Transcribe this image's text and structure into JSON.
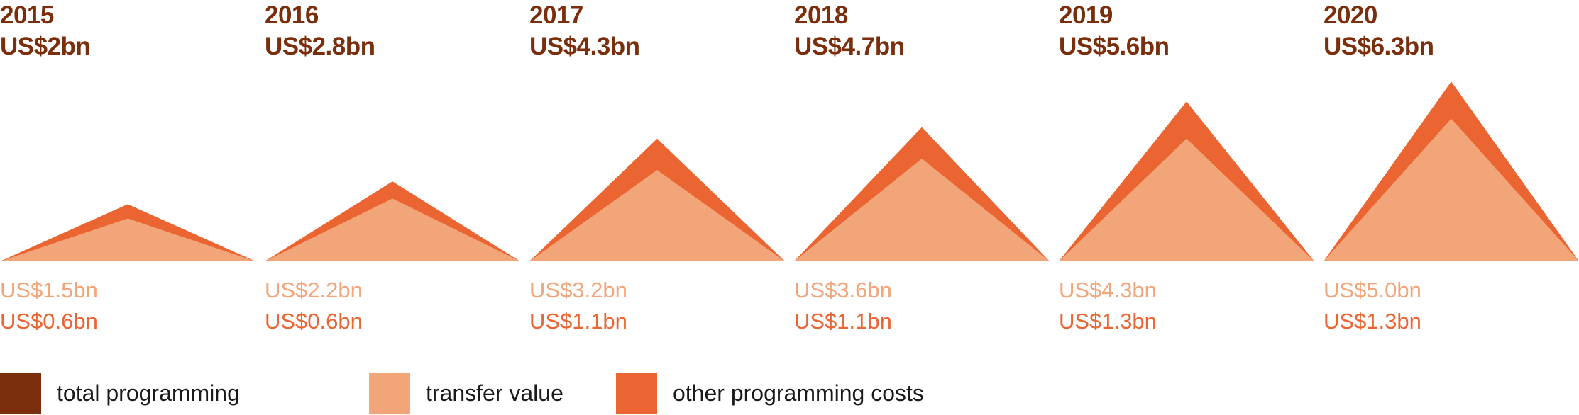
{
  "colors": {
    "total": "#7a2e0c",
    "transfer": "#f3a57a",
    "other": "#ea6531"
  },
  "chart_data": {
    "type": "area",
    "categories": [
      "2015",
      "2016",
      "2017",
      "2018",
      "2019",
      "2020"
    ],
    "total_labels": [
      "US$2bn",
      "US$2.8bn",
      "US$4.3bn",
      "US$4.7bn",
      "US$5.6bn",
      "US$6.3bn"
    ],
    "transfer_labels": [
      "US$1.5bn",
      "US$2.2bn",
      "US$3.2bn",
      "US$3.6bn",
      "US$4.3bn",
      "US$5.0bn"
    ],
    "other_labels": [
      "US$0.6bn",
      "US$0.6bn",
      "US$1.1bn",
      "US$1.1bn",
      "US$1.3bn",
      "US$1.3bn"
    ],
    "series": [
      {
        "name": "total programming",
        "values": [
          2.0,
          2.8,
          4.3,
          4.7,
          5.6,
          6.3
        ]
      },
      {
        "name": "transfer value",
        "values": [
          1.5,
          2.2,
          3.2,
          3.6,
          4.3,
          5.0
        ]
      },
      {
        "name": "other programming costs",
        "values": [
          0.6,
          0.6,
          1.1,
          1.1,
          1.3,
          1.3
        ]
      }
    ],
    "legend": [
      "total programming",
      "transfer value",
      "other programming costs"
    ],
    "legend_position": "bottom",
    "grid": false
  }
}
